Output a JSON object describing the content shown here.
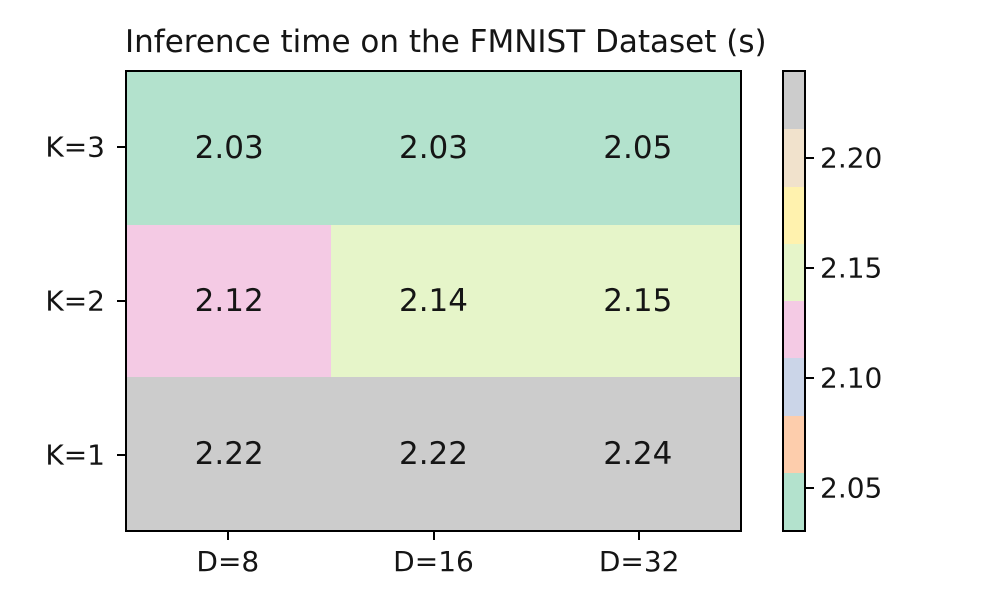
{
  "chart_data": {
    "type": "heatmap",
    "title": "Inference time on the FMNIST Dataset (s)",
    "x_categories": [
      "D=8",
      "D=16",
      "D=32"
    ],
    "y_categories": [
      "K=3",
      "K=2",
      "K=1"
    ],
    "values": [
      [
        2.03,
        2.03,
        2.05
      ],
      [
        2.12,
        2.14,
        2.15
      ],
      [
        2.22,
        2.22,
        2.24
      ]
    ],
    "cell_colors": [
      [
        "#b3e2cd",
        "#b3e2cd",
        "#b3e2cd"
      ],
      [
        "#f4cae4",
        "#e6f5c9",
        "#e6f5c9"
      ],
      [
        "#cccccc",
        "#cccccc",
        "#cccccc"
      ]
    ],
    "vmin": 2.03,
    "vmax": 2.24,
    "value_format_decimals": 2,
    "colormap_name": "Pastel2",
    "colorbar": {
      "segments_top_to_bottom": [
        "#cccccc",
        "#f1e2cc",
        "#fff2ae",
        "#e6f5c9",
        "#f4cae4",
        "#cbd5e8",
        "#fdcdac",
        "#b3e2cd"
      ],
      "ticks": [
        {
          "label": "2.20",
          "value": 2.2
        },
        {
          "label": "2.15",
          "value": 2.15
        },
        {
          "label": "2.10",
          "value": 2.1
        },
        {
          "label": "2.05",
          "value": 2.05
        }
      ],
      "position": "right"
    },
    "colors": {
      "text": "#151515",
      "axes_border": "#000000",
      "background": "#ffffff"
    },
    "layout_hints": {
      "legend": "colorbar-right",
      "grid": false,
      "annotations_shown": true
    }
  }
}
